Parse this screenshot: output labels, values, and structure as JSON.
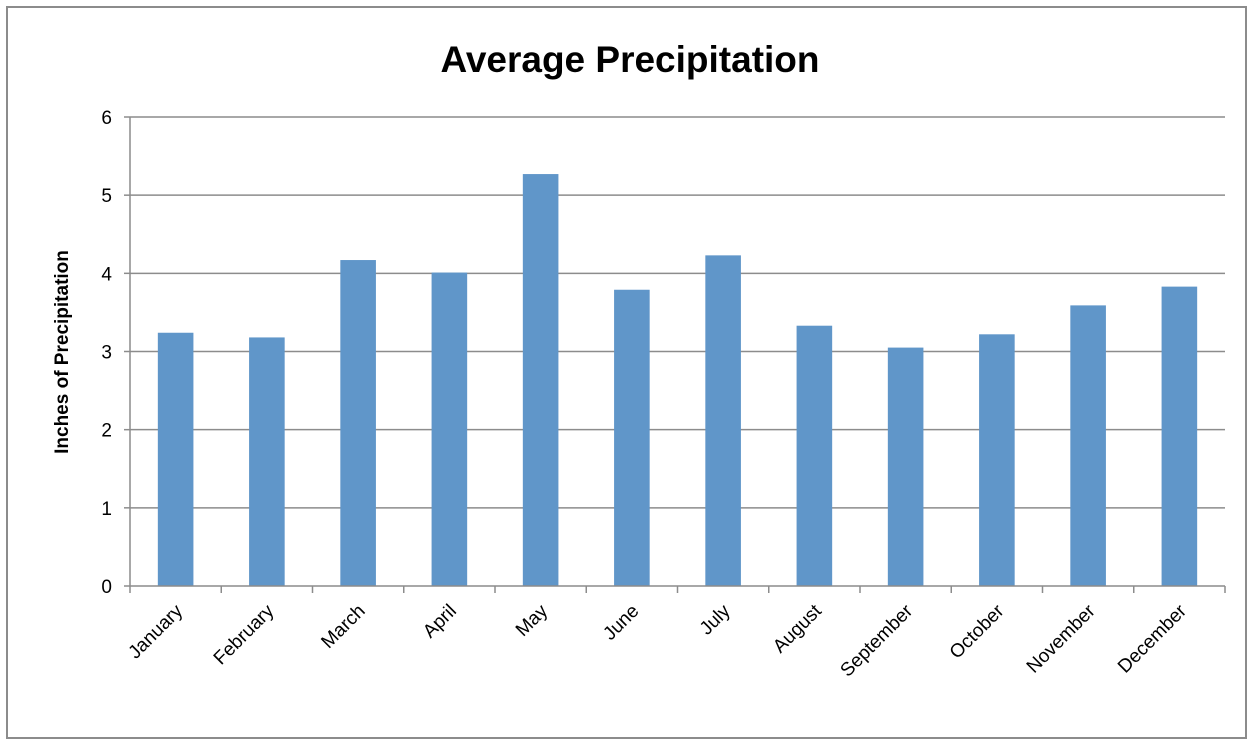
{
  "chart_data": {
    "type": "bar",
    "title": "Average Precipitation",
    "xlabel": "",
    "ylabel": "Inches of Precipitation",
    "categories": [
      "January",
      "February",
      "March",
      "April",
      "May",
      "June",
      "July",
      "August",
      "September",
      "October",
      "November",
      "December"
    ],
    "values": [
      3.24,
      3.18,
      4.17,
      4.01,
      5.27,
      3.79,
      4.23,
      3.33,
      3.05,
      3.22,
      3.59,
      3.83
    ],
    "ylim": [
      0,
      6
    ],
    "yticks": [
      0,
      1,
      2,
      3,
      4,
      5,
      6
    ],
    "grid": true,
    "legend": "none",
    "bar_color": "#6096C9"
  }
}
